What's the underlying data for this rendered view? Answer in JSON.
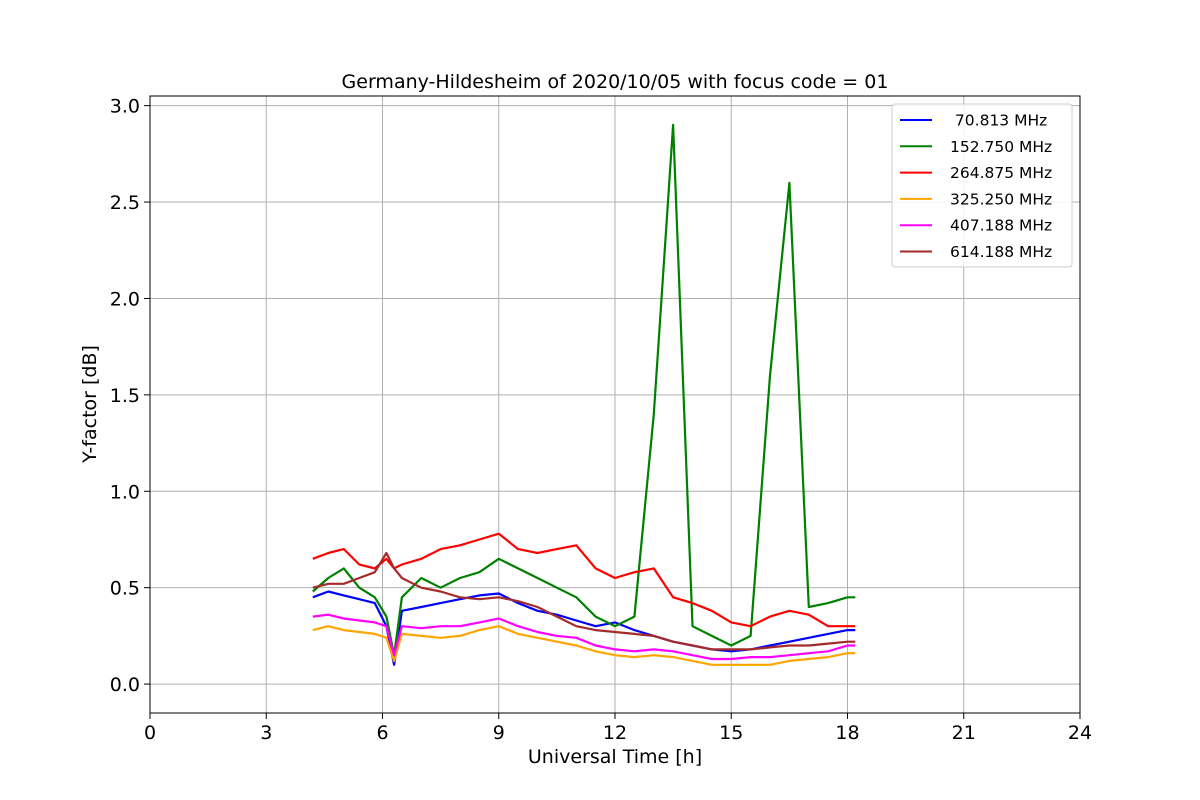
{
  "chart_data": {
    "type": "line",
    "title": "Germany-Hildesheim of 2020/10/05 with focus code = 01",
    "xlabel": "Universal Time [h]",
    "ylabel": "Y-factor [dB]",
    "xlim": [
      0,
      24
    ],
    "ylim": [
      -0.15,
      3.05
    ],
    "xticks": [
      0,
      3,
      6,
      9,
      12,
      15,
      18,
      21,
      24
    ],
    "xtick_labels": [
      "0",
      "3",
      "6",
      "9",
      "12",
      "15",
      "18",
      "21",
      "24"
    ],
    "yticks": [
      0.0,
      0.5,
      1.0,
      1.5,
      2.0,
      2.5,
      3.0
    ],
    "ytick_labels": [
      "0.0",
      "0.5",
      "1.0",
      "1.5",
      "2.0",
      "2.5",
      "3.0"
    ],
    "grid": true,
    "legend_position": "top-right",
    "x": [
      4.2,
      4.6,
      5.0,
      5.4,
      5.8,
      6.1,
      6.3,
      6.5,
      7.0,
      7.5,
      8.0,
      8.5,
      9.0,
      9.5,
      10.0,
      10.5,
      11.0,
      11.5,
      12.0,
      12.5,
      13.0,
      13.5,
      14.0,
      14.5,
      15.0,
      15.5,
      16.0,
      16.5,
      17.0,
      17.5,
      18.0,
      18.2
    ],
    "series": [
      {
        "name": " 70.813 MHz",
        "color": "#0000ff",
        "values": [
          0.45,
          0.48,
          0.46,
          0.44,
          0.42,
          0.3,
          0.1,
          0.38,
          0.4,
          0.42,
          0.44,
          0.46,
          0.47,
          0.42,
          0.38,
          0.36,
          0.33,
          0.3,
          0.32,
          0.28,
          0.25,
          0.22,
          0.2,
          0.18,
          0.17,
          0.18,
          0.2,
          0.22,
          0.24,
          0.26,
          0.28,
          0.28
        ]
      },
      {
        "name": "152.750 MHz",
        "color": "#008000",
        "values": [
          0.48,
          0.55,
          0.6,
          0.5,
          0.45,
          0.35,
          0.15,
          0.45,
          0.55,
          0.5,
          0.55,
          0.58,
          0.65,
          0.6,
          0.55,
          0.5,
          0.45,
          0.35,
          0.3,
          0.35,
          1.4,
          2.9,
          0.3,
          0.25,
          0.2,
          0.25,
          1.6,
          2.6,
          0.4,
          0.42,
          0.45,
          0.45
        ]
      },
      {
        "name": "264.875 MHz",
        "color": "#ff0000",
        "values": [
          0.65,
          0.68,
          0.7,
          0.62,
          0.6,
          0.65,
          0.6,
          0.62,
          0.65,
          0.7,
          0.72,
          0.75,
          0.78,
          0.7,
          0.68,
          0.7,
          0.72,
          0.6,
          0.55,
          0.58,
          0.6,
          0.45,
          0.42,
          0.38,
          0.32,
          0.3,
          0.35,
          0.38,
          0.36,
          0.3,
          0.3,
          0.3
        ]
      },
      {
        "name": "325.250 MHz",
        "color": "#ffa500",
        "values": [
          0.28,
          0.3,
          0.28,
          0.27,
          0.26,
          0.24,
          0.12,
          0.26,
          0.25,
          0.24,
          0.25,
          0.28,
          0.3,
          0.26,
          0.24,
          0.22,
          0.2,
          0.17,
          0.15,
          0.14,
          0.15,
          0.14,
          0.12,
          0.1,
          0.1,
          0.1,
          0.1,
          0.12,
          0.13,
          0.14,
          0.16,
          0.16
        ]
      },
      {
        "name": "407.188 MHz",
        "color": "#ff00ff",
        "values": [
          0.35,
          0.36,
          0.34,
          0.33,
          0.32,
          0.3,
          0.15,
          0.3,
          0.29,
          0.3,
          0.3,
          0.32,
          0.34,
          0.3,
          0.27,
          0.25,
          0.24,
          0.2,
          0.18,
          0.17,
          0.18,
          0.17,
          0.15,
          0.13,
          0.13,
          0.14,
          0.14,
          0.15,
          0.16,
          0.17,
          0.2,
          0.2
        ]
      },
      {
        "name": "614.188 MHz",
        "color": "#a52a2a",
        "values": [
          0.5,
          0.52,
          0.52,
          0.55,
          0.58,
          0.68,
          0.6,
          0.55,
          0.5,
          0.48,
          0.45,
          0.44,
          0.45,
          0.43,
          0.4,
          0.35,
          0.3,
          0.28,
          0.27,
          0.26,
          0.25,
          0.22,
          0.2,
          0.18,
          0.18,
          0.18,
          0.19,
          0.2,
          0.2,
          0.21,
          0.22,
          0.22
        ]
      }
    ]
  }
}
